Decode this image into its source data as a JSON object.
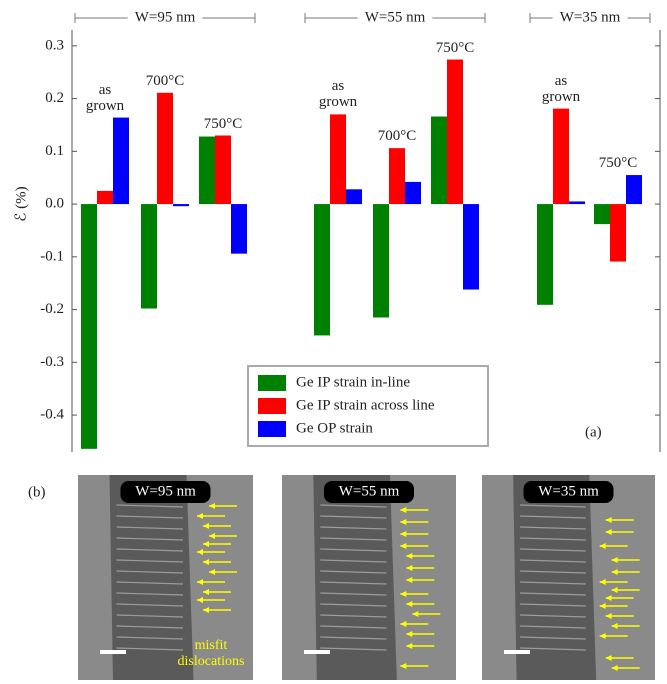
{
  "chart_data": {
    "type": "bar",
    "ylabel": "ℰ (%)",
    "panels": [
      {
        "label": "W=95 nm",
        "categories": [
          "as grown",
          "700°C",
          "750°C"
        ]
      },
      {
        "label": "W=55 nm",
        "categories": [
          "as grown",
          "700°C",
          "750°C"
        ]
      },
      {
        "label": "W=35 nm",
        "categories": [
          "as grown",
          "750°C"
        ]
      }
    ],
    "series": [
      {
        "name": "Ge IP strain in-line",
        "color": "#008000",
        "values": [
          -0.464,
          -0.198,
          0.128,
          -0.249,
          -0.215,
          0.166,
          -0.191,
          -0.038
        ]
      },
      {
        "name": "Ge IP strain across line",
        "color": "#ff0000",
        "values": [
          0.025,
          0.211,
          0.13,
          0.17,
          0.106,
          0.274,
          0.181,
          -0.109
        ]
      },
      {
        "name": "Ge OP strain",
        "color": "#0000ff",
        "values": [
          0.164,
          -0.004,
          -0.094,
          0.028,
          0.042,
          -0.162,
          0.005,
          0.055
        ]
      }
    ],
    "ylim": [
      -0.47,
      0.33
    ],
    "yticks": [
      0.3,
      0.2,
      0.1,
      {
        "value": 0,
        "label": "0.0"
      },
      -0.1,
      -0.2,
      -0.3,
      -0.4
    ],
    "legend": "lower right",
    "panel_label": "(a)"
  },
  "micrographs": {
    "panel_label": "(b)",
    "images": [
      {
        "label": "W=95 nm",
        "annotation": "misfit dislocations"
      },
      {
        "label": "W=55 nm"
      },
      {
        "label": "W=35 nm"
      }
    ]
  }
}
